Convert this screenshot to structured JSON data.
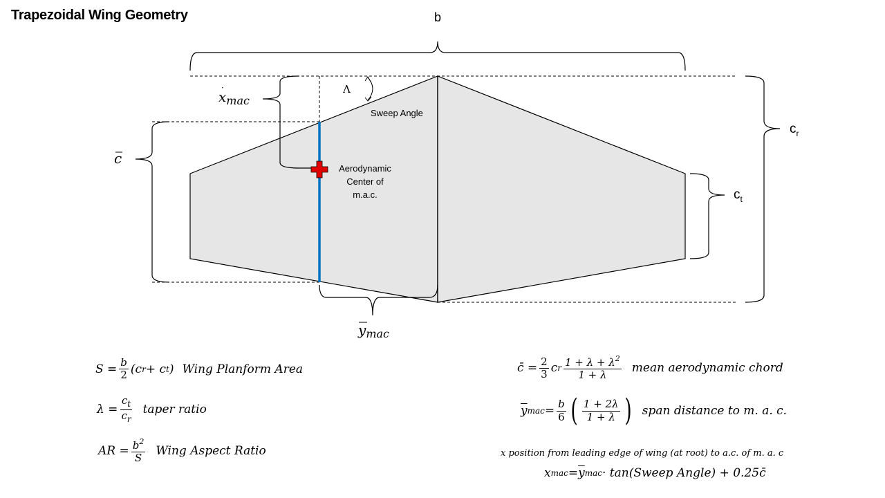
{
  "title": "Trapezoidal Wing Geometry",
  "labels": {
    "span": "b",
    "root_chord": "c",
    "root_chord_sub": "r",
    "tip_chord": "c",
    "tip_chord_sub": "t",
    "x_mac": "x",
    "x_mac_sub": "mac",
    "c_bar": "c",
    "y_mac": "y",
    "y_mac_sub": "mac",
    "sweep_symbol": "Λ",
    "sweep_angle": "Sweep Angle",
    "ac_line1": "Aerodynamic",
    "ac_line2": "Center of",
    "ac_line3": "m.a.c."
  },
  "colors": {
    "wing_fill": "#e6e6e6",
    "outline": "#000000",
    "mac_line": "#0070c0",
    "ac_marker": "#e00000"
  },
  "formulas": {
    "area": {
      "lhs": "S =",
      "frac_num": "b",
      "frac_den": "2",
      "rhs": "(c",
      "r": "r",
      "plus": " + c",
      "t": "t",
      "close": ")",
      "desc": "Wing Planform Area"
    },
    "taper": {
      "lhs": "λ =",
      "num": "c",
      "num_sub": "t",
      "den": "c",
      "den_sub": "r",
      "desc": "taper ratio"
    },
    "aspect": {
      "lhs": "AR =",
      "num": "b",
      "num_sup": "2",
      "den": "S",
      "desc": "Wing Aspect Ratio"
    },
    "mac": {
      "lhs": "c̄ =",
      "frac_num": "2",
      "frac_den": "3",
      "c": "c",
      "c_sub": "r",
      "num": "1 + λ + λ",
      "num_sup": "2",
      "den": "1 + λ",
      "desc": "mean aerodynamic chord"
    },
    "ymac": {
      "lhs": "y",
      "lhs_sub": "mac",
      "eq": " =",
      "frac_num": "b",
      "frac_den": "6",
      "num": "1 + 2λ",
      "den": "1 + λ",
      "desc": "span distance to m. a. c."
    },
    "xmac_note": "x position from leading edge of wing (at root) to a.c. of m. a. c",
    "xmac": {
      "lhs": "x",
      "lhs_sub": "mac",
      "eq": " = ",
      "y": "y",
      "y_sub": "mac",
      "rhs": " · tan(Sweep Angle) + 0.25c̄"
    }
  }
}
